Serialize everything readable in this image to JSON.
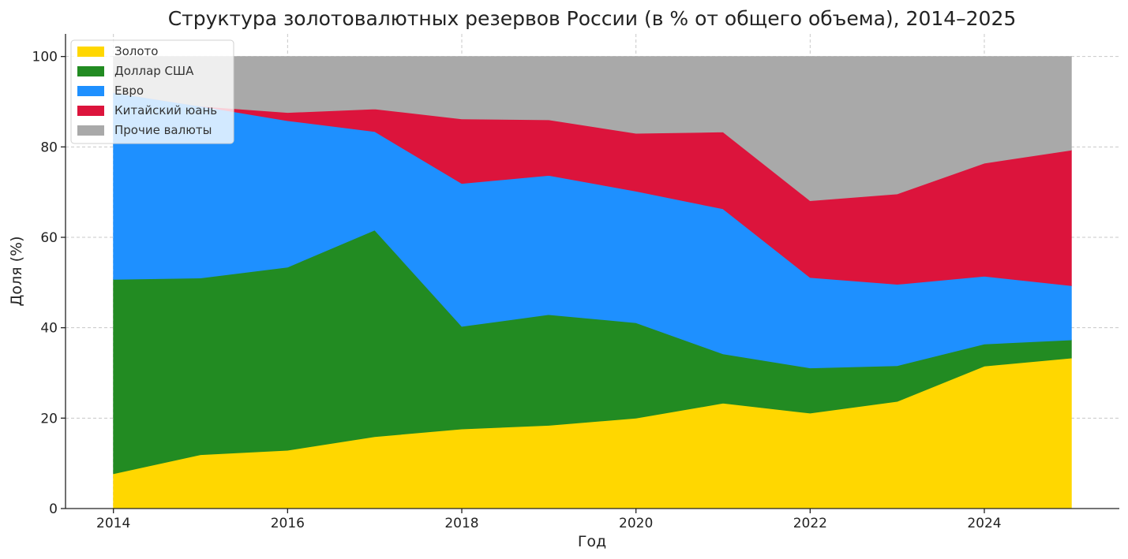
{
  "chart_data": {
    "type": "area",
    "stacked": true,
    "title": "Структура золотовалютных резервов России (в % от общего объема), 2014–2025",
    "xlabel": "Год",
    "ylabel": "Доля (%)",
    "xlim": [
      2013.45,
      2025.55
    ],
    "ylim": [
      0,
      105
    ],
    "grid": true,
    "legend_position": "top-left",
    "x": [
      2014,
      2015,
      2016,
      2017,
      2018,
      2019,
      2020,
      2021,
      2022,
      2023,
      2024,
      2025
    ],
    "x_ticks": [
      2014,
      2016,
      2018,
      2020,
      2022,
      2024
    ],
    "y_ticks": [
      0,
      20,
      40,
      60,
      80,
      100
    ],
    "series": [
      {
        "name": "Золото",
        "color": "#FFD700",
        "values": [
          7.7,
          11.9,
          12.9,
          15.9,
          17.6,
          18.4,
          20.0,
          23.3,
          21.1,
          23.7,
          31.5,
          33.3
        ]
      },
      {
        "name": "Доллар США",
        "color": "#228B22",
        "values": [
          43.0,
          39.1,
          40.5,
          45.7,
          22.7,
          24.5,
          21.1,
          10.9,
          10.0,
          7.9,
          4.9,
          4.0
        ]
      },
      {
        "name": "Евро",
        "color": "#1E90FF",
        "values": [
          41.3,
          38.0,
          32.4,
          21.8,
          31.6,
          30.8,
          29.1,
          32.1,
          20.0,
          18.0,
          15.0,
          12.0
        ]
      },
      {
        "name": "Китайский юань",
        "color": "#DC143C",
        "values": [
          0.0,
          0.0,
          1.8,
          5.0,
          14.3,
          12.3,
          12.8,
          17.0,
          17.0,
          20.0,
          25.0,
          30.0
        ]
      },
      {
        "name": "Прочие валюты",
        "color": "#A9A9A9",
        "values": [
          8.0,
          11.0,
          12.4,
          11.6,
          13.8,
          14.0,
          17.0,
          16.7,
          31.9,
          30.4,
          23.6,
          20.7
        ]
      }
    ]
  }
}
